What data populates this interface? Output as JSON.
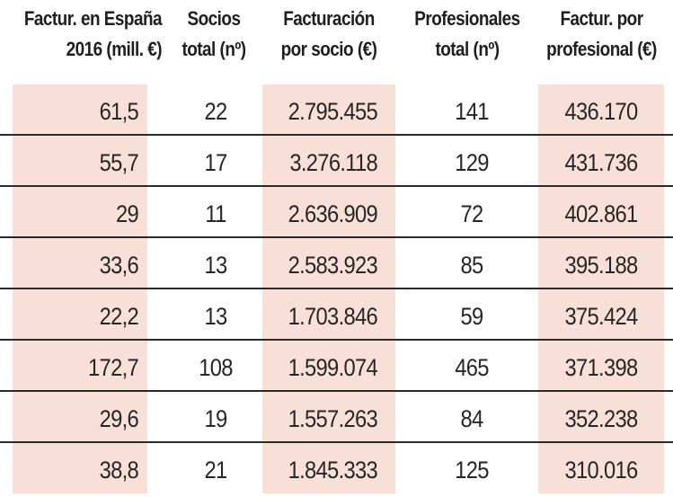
{
  "colors": {
    "highlight_column": "#f8e0d8",
    "text": "#262626",
    "row_rule": "#2a2a2a"
  },
  "headers": [
    {
      "line1": "Factur. en España",
      "line2": "2016 (mill. €)"
    },
    {
      "line1": "Socios",
      "line2": "total (nº)"
    },
    {
      "line1": "Facturación",
      "line2": "por socio (€)"
    },
    {
      "line1": "Profesionales",
      "line2": "total (nº)"
    },
    {
      "line1": "Factur. por",
      "line2": "profesional (€)"
    }
  ],
  "rows": [
    [
      "61,5",
      "22",
      "2.795.455",
      "141",
      "436.170"
    ],
    [
      "55,7",
      "17",
      "3.276.118",
      "129",
      "431.736"
    ],
    [
      "29",
      "11",
      "2.636.909",
      "72",
      "402.861"
    ],
    [
      "33,6",
      "13",
      "2.583.923",
      "85",
      "395.188"
    ],
    [
      "22,2",
      "13",
      "1.703.846",
      "59",
      "375.424"
    ],
    [
      "172,7",
      "108",
      "1.599.074",
      "465",
      "371.398"
    ],
    [
      "29,6",
      "19",
      "1.557.263",
      "84",
      "352.238"
    ],
    [
      "38,8",
      "21",
      "1.845.333",
      "125",
      "310.016"
    ]
  ]
}
